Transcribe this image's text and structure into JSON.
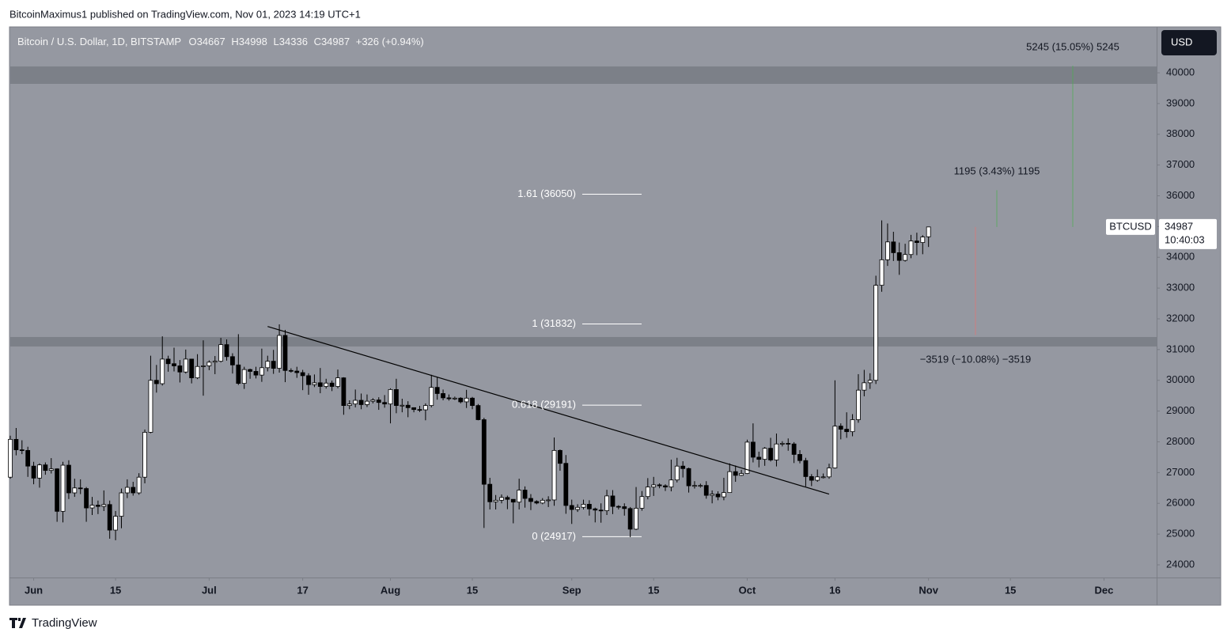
{
  "header": {
    "author_line": "BitcoinMaximus1 published on TradingView.com, Nov 01, 2023 14:19 UTC+1"
  },
  "footer": {
    "brand": "TradingView"
  },
  "chart_data": {
    "type": "candlestick",
    "symbol_title": "Bitcoin / U.S. Dollar, 1D, BITSTAMP",
    "ohlc_legend": [
      "O34667",
      "H34998",
      "L34336",
      "C34987",
      "+326 (+0.94%)"
    ],
    "currency": "USD",
    "price_tag": {
      "symbol": "BTCUSD",
      "value": 34987,
      "countdown": "10:40:03"
    },
    "x": [
      "May 28",
      "May 29",
      "May 30",
      "May 31",
      "Jun 1",
      "Jun 2",
      "Jun 3",
      "Jun 4",
      "Jun 5",
      "Jun 6",
      "Jun 7",
      "Jun 8",
      "Jun 9",
      "Jun 10",
      "Jun 11",
      "Jun 12",
      "Jun 13",
      "Jun 14",
      "Jun 15",
      "Jun 16",
      "Jun 17",
      "Jun 18",
      "Jun 19",
      "Jun 20",
      "Jun 21",
      "Jun 22",
      "Jun 23",
      "Jun 24",
      "Jun 25",
      "Jun 26",
      "Jun 27",
      "Jun 28",
      "Jun 29",
      "Jun 30",
      "Jul 1",
      "Jul 2",
      "Jul 3",
      "Jul 4",
      "Jul 5",
      "Jul 6",
      "Jul 7",
      "Jul 8",
      "Jul 9",
      "Jul 10",
      "Jul 11",
      "Jul 12",
      "Jul 13",
      "Jul 14",
      "Jul 15",
      "Jul 16",
      "Jul 17",
      "Jul 18",
      "Jul 19",
      "Jul 20",
      "Jul 21",
      "Jul 22",
      "Jul 23",
      "Jul 24",
      "Jul 25",
      "Jul 26",
      "Jul 27",
      "Jul 28",
      "Jul 29",
      "Jul 30",
      "Jul 31",
      "Aug 1",
      "Aug 2",
      "Aug 3",
      "Aug 4",
      "Aug 5",
      "Aug 6",
      "Aug 7",
      "Aug 8",
      "Aug 9",
      "Aug 10",
      "Aug 11",
      "Aug 12",
      "Aug 13",
      "Aug 14",
      "Aug 15",
      "Aug 16",
      "Aug 17",
      "Aug 18",
      "Aug 19",
      "Aug 20",
      "Aug 21",
      "Aug 22",
      "Aug 23",
      "Aug 24",
      "Aug 25",
      "Aug 26",
      "Aug 27",
      "Aug 28",
      "Aug 29",
      "Aug 30",
      "Aug 31",
      "Sep 1",
      "Sep 2",
      "Sep 3",
      "Sep 4",
      "Sep 5",
      "Sep 6",
      "Sep 7",
      "Sep 8",
      "Sep 9",
      "Sep 10",
      "Sep 11",
      "Sep 12",
      "Sep 13",
      "Sep 14",
      "Sep 15",
      "Sep 16",
      "Sep 17",
      "Sep 18",
      "Sep 19",
      "Sep 20",
      "Sep 21",
      "Sep 22",
      "Sep 23",
      "Sep 24",
      "Sep 25",
      "Sep 26",
      "Sep 27",
      "Sep 28",
      "Sep 29",
      "Sep 30",
      "Oct 1",
      "Oct 2",
      "Oct 3",
      "Oct 4",
      "Oct 5",
      "Oct 6",
      "Oct 7",
      "Oct 8",
      "Oct 9",
      "Oct 10",
      "Oct 11",
      "Oct 12",
      "Oct 13",
      "Oct 14",
      "Oct 15",
      "Oct 16",
      "Oct 17",
      "Oct 18",
      "Oct 19",
      "Oct 20",
      "Oct 21",
      "Oct 22",
      "Oct 23",
      "Oct 24",
      "Oct 25",
      "Oct 26",
      "Oct 27",
      "Oct 28",
      "Oct 29",
      "Oct 30",
      "Oct 31",
      "Nov 1"
    ],
    "open": [
      26850,
      28080,
      27740,
      27720,
      27210,
      26820,
      27250,
      27070,
      27120,
      25740,
      27240,
      26340,
      26500,
      26480,
      25850,
      25940,
      25900,
      25960,
      25130,
      25580,
      26340,
      26520,
      26340,
      26850,
      28310,
      30000,
      29890,
      30690,
      30540,
      30470,
      30270,
      30690,
      30080,
      30450,
      30470,
      30590,
      30620,
      31160,
      30770,
      30500,
      29900,
      30350,
      30290,
      30170,
      30410,
      30620,
      30390,
      31460,
      30320,
      30300,
      30250,
      30150,
      29860,
      29920,
      29800,
      29910,
      29800,
      30080,
      29180,
      29230,
      29350,
      29210,
      29320,
      29360,
      29280,
      29230,
      29700,
      29180,
      29190,
      29110,
      29050,
      29040,
      29180,
      29770,
      29570,
      29430,
      29400,
      29420,
      29300,
      29420,
      29180,
      28720,
      26620,
      26050,
      26100,
      26190,
      26130,
      26040,
      26430,
      26160,
      26060,
      26010,
      26100,
      26110,
      27720,
      27300,
      25930,
      25800,
      25870,
      25970,
      25820,
      25780,
      25760,
      26240,
      25900,
      25890,
      25830,
      25160,
      25840,
      26220,
      26530,
      26600,
      26570,
      26530,
      26760,
      27210,
      27130,
      26570,
      26580,
      26580,
      26260,
      26300,
      26210,
      26350,
      27030,
      26910,
      26970,
      27990,
      27500,
      27430,
      27790,
      27410,
      27930,
      27950,
      27930,
      27590,
      27390,
      26870,
      26750,
      26860,
      26860,
      27150,
      28510,
      28410,
      28330,
      28720,
      29680,
      29920,
      30000,
      33090,
      33920,
      34500,
      34150,
      33900,
      34090,
      34530,
      34480,
      34667
    ],
    "high": [
      28200,
      28450,
      28050,
      27840,
      27350,
      27300,
      27330,
      27470,
      27140,
      27350,
      27400,
      26800,
      26780,
      26530,
      26210,
      26090,
      26420,
      26090,
      25750,
      26480,
      26780,
      26700,
      26980,
      28400,
      30800,
      30500,
      31430,
      30800,
      31060,
      30660,
      31000,
      30700,
      30850,
      31300,
      30650,
      30790,
      31380,
      31330,
      30880,
      31500,
      30440,
      30380,
      30440,
      31030,
      30800,
      30990,
      31820,
      31640,
      30390,
      30440,
      30340,
      30230,
      30190,
      30400,
      30050,
      29990,
      30350,
      30100,
      29350,
      29700,
      29570,
      29540,
      29420,
      29450,
      29520,
      29740,
      30050,
      29400,
      29320,
      29120,
      29170,
      29250,
      30180,
      30100,
      29700,
      29540,
      29470,
      29450,
      29690,
      29460,
      29230,
      28780,
      26830,
      26270,
      26290,
      26250,
      26130,
      26800,
      26550,
      26300,
      26100,
      26170,
      26230,
      28140,
      27750,
      27570,
      26120,
      25970,
      26120,
      26100,
      25860,
      26000,
      26440,
      26430,
      25940,
      26000,
      25880,
      26530,
      26400,
      26820,
      26860,
      26650,
      26620,
      27420,
      27480,
      27370,
      27160,
      26720,
      26640,
      26720,
      26420,
      26390,
      26830,
      27300,
      27230,
      27090,
      28070,
      28600,
      27680,
      27830,
      28130,
      28270,
      28020,
      28110,
      27990,
      27730,
      27480,
      26950,
      27100,
      26970,
      27290,
      30000,
      28600,
      28960,
      28900,
      30200,
      30340,
      30230,
      33400,
      35200,
      35100,
      34830,
      34480,
      34440,
      34730,
      34800,
      34720,
      34998
    ],
    "low": [
      26800,
      27560,
      27600,
      26860,
      26620,
      26510,
      26930,
      26970,
      25400,
      25380,
      26140,
      26210,
      26300,
      25400,
      25620,
      25650,
      25750,
      24850,
      24800,
      25190,
      26170,
      26250,
      26280,
      26650,
      28280,
      29600,
      29830,
      30280,
      30290,
      29930,
      30220,
      29900,
      30040,
      29500,
      30330,
      30200,
      30580,
      30640,
      30220,
      29850,
      29720,
      30050,
      30060,
      29950,
      30290,
      30210,
      30250,
      29940,
      30250,
      30080,
      29680,
      29530,
      29780,
      29580,
      29730,
      29650,
      29740,
      28880,
      29060,
      29120,
      29060,
      29130,
      29250,
      29040,
      29110,
      28600,
      28930,
      28960,
      28800,
      28960,
      28970,
      28700,
      29120,
      29370,
      29350,
      29340,
      29360,
      29250,
      29100,
      29060,
      28700,
      25200,
      25800,
      25800,
      26000,
      25810,
      25350,
      25800,
      25860,
      25780,
      25970,
      25970,
      25880,
      25920,
      27060,
      25660,
      25330,
      25720,
      25800,
      25600,
      25380,
      25370,
      25620,
      25650,
      25800,
      25600,
      24900,
      25130,
      25760,
      26130,
      26240,
      26490,
      26400,
      26390,
      26680,
      26840,
      26350,
      26480,
      26510,
      26150,
      26000,
      26100,
      26100,
      26340,
      26700,
      26890,
      26950,
      27330,
      27170,
      27220,
      27360,
      27200,
      27850,
      27710,
      27310,
      27300,
      26550,
      26560,
      26700,
      26810,
      26800,
      27130,
      28080,
      28130,
      28180,
      28620,
      29480,
      29720,
      29880,
      32880,
      33720,
      33880,
      33430,
      33860,
      33970,
      34070,
      34100,
      34336
    ],
    "close": [
      28080,
      27740,
      27720,
      27210,
      26820,
      27250,
      27070,
      27120,
      25740,
      27240,
      26340,
      26500,
      26480,
      25850,
      25940,
      25900,
      25960,
      25130,
      25580,
      26340,
      26520,
      26340,
      26850,
      28310,
      30000,
      29890,
      30690,
      30540,
      30470,
      30270,
      30690,
      30080,
      30450,
      30470,
      30590,
      30620,
      31160,
      30770,
      30500,
      29900,
      30350,
      30290,
      30170,
      30410,
      30620,
      30390,
      31460,
      30320,
      30300,
      30250,
      30150,
      29860,
      29920,
      29800,
      29910,
      29800,
      30080,
      29180,
      29230,
      29350,
      29210,
      29320,
      29360,
      29280,
      29230,
      29700,
      29180,
      29190,
      29110,
      29050,
      29040,
      29180,
      29770,
      29570,
      29430,
      29400,
      29420,
      29300,
      29420,
      29180,
      28720,
      26620,
      26050,
      26100,
      26190,
      26130,
      26040,
      26430,
      26160,
      26060,
      26010,
      26100,
      26110,
      27720,
      27300,
      25930,
      25800,
      25870,
      25970,
      25820,
      25780,
      25760,
      26240,
      25900,
      25890,
      25830,
      25160,
      25840,
      26220,
      26530,
      26600,
      26570,
      26530,
      26760,
      27210,
      27130,
      26570,
      26580,
      26580,
      26260,
      26300,
      26210,
      26350,
      27030,
      26910,
      26970,
      27990,
      27500,
      27430,
      27790,
      27410,
      27930,
      27950,
      27930,
      27590,
      27390,
      26870,
      26750,
      26860,
      26860,
      27150,
      28510,
      28410,
      28330,
      28720,
      29680,
      29920,
      30000,
      33090,
      33920,
      34500,
      34150,
      33900,
      34090,
      34530,
      34480,
      34660,
      34987
    ],
    "up_color": "#ffffff",
    "down_color": "#000000",
    "outline_color": "#000000",
    "xlim": [
      "May 28",
      "Dec 10"
    ],
    "xticks": [
      {
        "value": "Jun 1",
        "label": "Jun"
      },
      {
        "value": "Jun 15",
        "label": "15"
      },
      {
        "value": "Jul 1",
        "label": "Jul"
      },
      {
        "value": "Jul 17",
        "label": "17"
      },
      {
        "value": "Aug 1",
        "label": "Aug"
      },
      {
        "value": "Aug 15",
        "label": "15"
      },
      {
        "value": "Sep 1",
        "label": "Sep"
      },
      {
        "value": "Sep 15",
        "label": "15"
      },
      {
        "value": "Oct 1",
        "label": "Oct"
      },
      {
        "value": "Oct 16",
        "label": "16"
      },
      {
        "value": "Nov 1",
        "label": "Nov"
      },
      {
        "value": "Nov 15",
        "label": "15"
      },
      {
        "value": "Dec 1",
        "label": "Dec"
      }
    ],
    "ylim": [
      23588,
      41466
    ],
    "yticks": [
      24000,
      25000,
      26000,
      27000,
      28000,
      29000,
      30000,
      31000,
      32000,
      33000,
      34000,
      35000,
      36000,
      37000,
      38000,
      39000,
      40000
    ],
    "grid": false,
    "zones": [
      {
        "from": 39640,
        "to": 40206
      },
      {
        "from": 31100,
        "to": 31408
      }
    ],
    "fib_levels": [
      {
        "value": 36050,
        "label": "1.61 (36050)"
      },
      {
        "value": 31832,
        "label": "1 (31832)"
      },
      {
        "value": 29191,
        "label": "0.618 (29191)"
      },
      {
        "value": 24917,
        "label": "0 (24917)"
      }
    ],
    "trendline": {
      "x": [
        "Jul 11",
        "Oct 15"
      ],
      "y": [
        31750,
        26300
      ]
    },
    "measures": [
      {
        "text": "5245 (15.05%) 5245",
        "target": 40232,
        "color": "#4caf50"
      },
      {
        "text": "1195 (3.43%) 1195",
        "target": 36182,
        "color": "#4caf50"
      },
      {
        "text": "−3519 (−10.08%) −3519",
        "target": 31468,
        "color": "#e57373"
      }
    ]
  }
}
